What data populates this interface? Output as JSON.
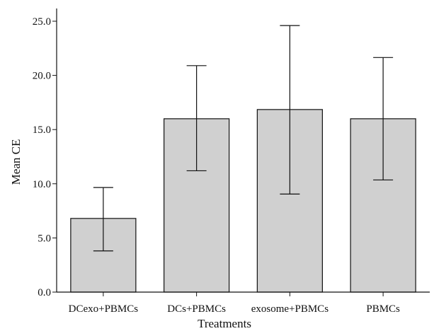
{
  "chart_data": {
    "type": "bar",
    "title": "",
    "xlabel": "Treatments",
    "ylabel": "Mean CE",
    "categories": [
      "DCexo+PBMCs",
      "DCs+PBMCs",
      "exosome+PBMCs",
      "PBMCs"
    ],
    "values": [
      6.8,
      16.0,
      16.85,
      16.0
    ],
    "error_low": [
      3.8,
      11.2,
      9.05,
      10.35
    ],
    "error_high": [
      9.65,
      20.9,
      24.6,
      21.65
    ],
    "ylim": [
      0,
      26
    ],
    "yticks": [
      "0.0",
      "5.0",
      "10.0",
      "15.0",
      "20.0",
      "25.0"
    ],
    "grid": false,
    "legend": "none",
    "colors": {
      "bar_fill": "#d0d0d0",
      "bar_stroke": "#111111",
      "axis": "#111111"
    }
  }
}
